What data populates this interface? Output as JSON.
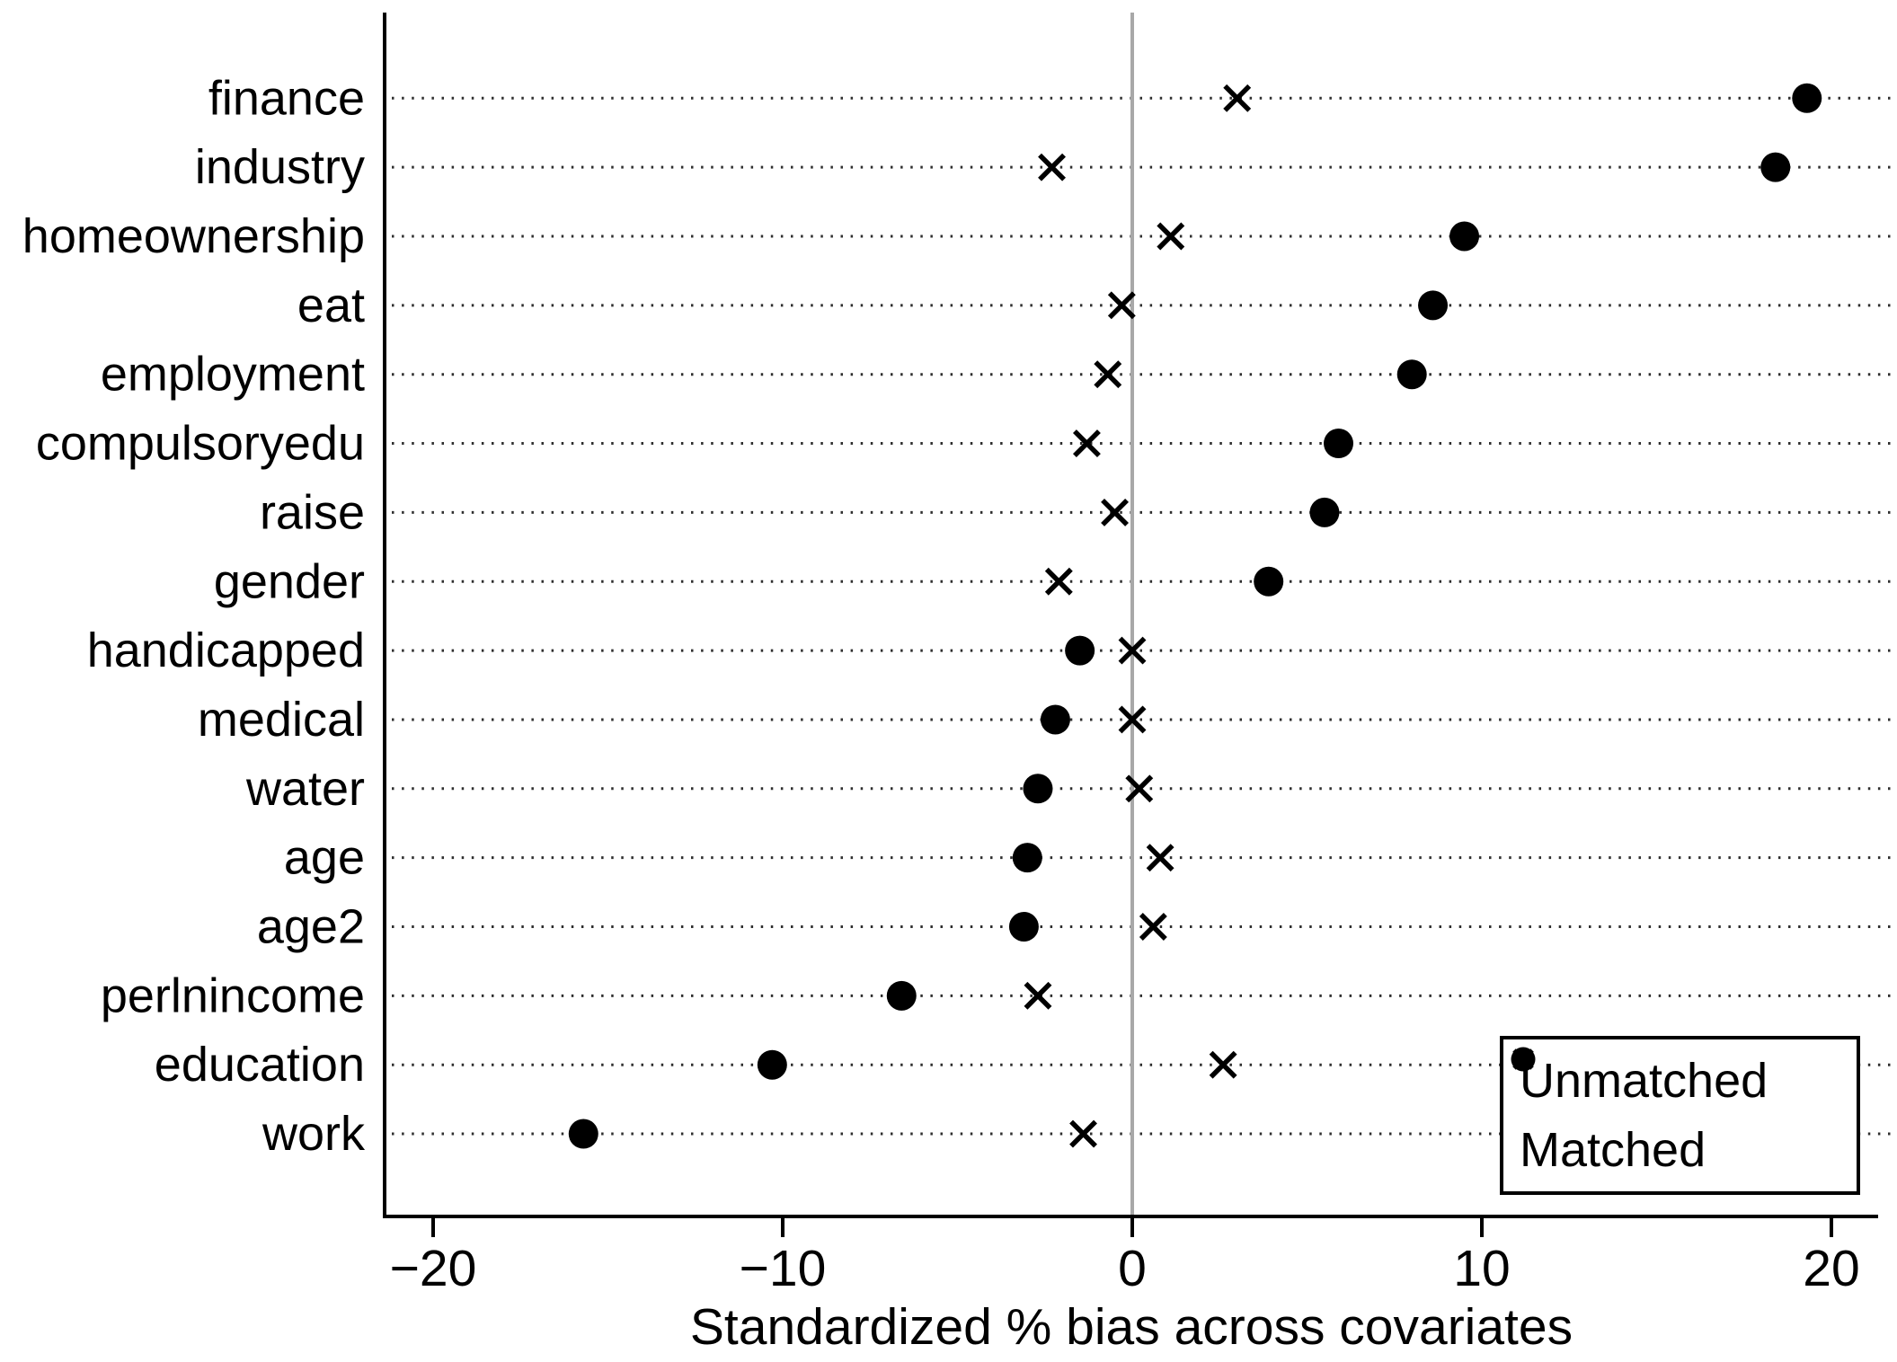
{
  "figure": {
    "background": "#ffffff"
  },
  "chart_data": {
    "type": "scatter",
    "title": "",
    "xlabel": "Standardized % bias across covariates",
    "ylabel": "",
    "categories": [
      "finance",
      "industry",
      "homeownership",
      "eat",
      "employment",
      "compulsoryedu",
      "raise",
      "gender",
      "handicapped",
      "medical",
      "water",
      "age",
      "age2",
      "perlnincome",
      "education",
      "work"
    ],
    "series": [
      {
        "name": "Unmatched",
        "marker": "circle",
        "color": "#000000",
        "values": [
          19.3,
          18.4,
          9.5,
          8.6,
          8.0,
          5.9,
          5.5,
          3.9,
          -1.5,
          -2.2,
          -2.7,
          -3.0,
          -3.1,
          -6.6,
          -10.3,
          -15.7
        ]
      },
      {
        "name": "Matched",
        "marker": "x",
        "color": "#000000",
        "values": [
          3.0,
          -2.3,
          1.1,
          -0.3,
          -0.7,
          -1.3,
          -0.5,
          -2.1,
          0.0,
          0.0,
          0.2,
          0.8,
          0.6,
          -2.7,
          2.6,
          -1.4
        ]
      }
    ],
    "xticks": [
      -20,
      -10,
      0,
      10,
      20
    ],
    "xtick_labels": [
      "−20",
      "−10",
      "0",
      "10",
      "20"
    ],
    "xlim": [
      -21.4,
      21.8
    ],
    "grid": "dotted-horizontal",
    "zero_line": true,
    "legend_position": "bottom-right",
    "colors": {
      "axis": "#000000",
      "zero_line": "#a8a8a8",
      "dotted_line": "#2e2e2e",
      "marker": "#000000",
      "text": "#000000"
    }
  }
}
